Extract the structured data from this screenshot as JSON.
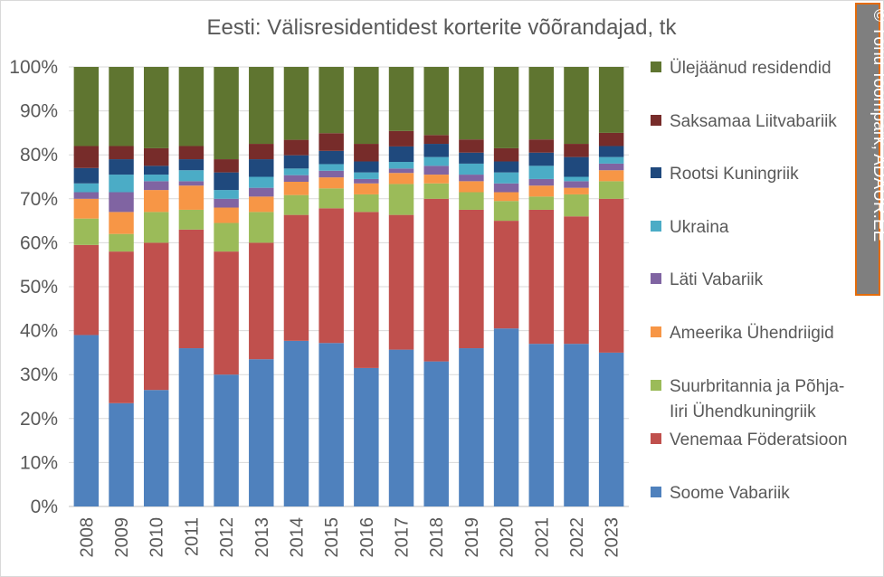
{
  "chart_data": {
    "type": "bar",
    "stacked": true,
    "percent_stacked": true,
    "title": "Eesti: Välisresidentidest korterite võõrandajad, tk",
    "xlabel": "",
    "ylabel": "",
    "ylim": [
      0,
      100
    ],
    "yticks": [
      "0%",
      "10%",
      "20%",
      "30%",
      "40%",
      "50%",
      "60%",
      "70%",
      "80%",
      "90%",
      "100%"
    ],
    "grid": true,
    "legend_position": "right",
    "categories": [
      "2008",
      "2009",
      "2010",
      "2011",
      "2012",
      "2013",
      "2014",
      "2015",
      "2016",
      "2017",
      "2018",
      "2019",
      "2020",
      "2021",
      "2022",
      "2023"
    ],
    "series": [
      {
        "name": "Soome Vabariik",
        "color": "#4f81bd",
        "values": [
          39,
          23.5,
          26.5,
          36,
          30,
          33.5,
          37.5,
          37,
          31.5,
          35.5,
          33,
          36,
          40.5,
          37,
          37,
          35
        ]
      },
      {
        "name": "Venemaa Föderatsioon",
        "color": "#c0504d",
        "values": [
          20.5,
          34.5,
          33.5,
          27,
          28,
          26.5,
          28.5,
          30.5,
          35.5,
          30.5,
          37,
          31.5,
          24.5,
          30.5,
          29,
          35
        ]
      },
      {
        "name": "Suurbritannia ja Põhja-Iiri Ühendkuningriik",
        "color": "#9bbb59",
        "values": [
          6,
          4,
          7,
          4.5,
          6.5,
          7,
          4.5,
          4.5,
          4,
          7,
          3.5,
          4,
          4.5,
          3,
          5,
          4
        ]
      },
      {
        "name": "Ameerika Ühendriigid",
        "color": "#f79646",
        "values": [
          4.5,
          5,
          5,
          5.5,
          3.5,
          3.5,
          3,
          2.5,
          2.5,
          2.5,
          2,
          2.5,
          2,
          2.5,
          1.5,
          2.5
        ]
      },
      {
        "name": "Läti Vabariik",
        "color": "#8064a2",
        "values": [
          1.5,
          4.5,
          2,
          1,
          2,
          2,
          1.5,
          1.5,
          1,
          1,
          2,
          1.5,
          2,
          1.5,
          1.5,
          1.5
        ]
      },
      {
        "name": "Ukraina",
        "color": "#4bacc6",
        "values": [
          2,
          4,
          1.5,
          2.5,
          2,
          2.5,
          1.5,
          1.5,
          1.5,
          1.5,
          2,
          2.5,
          2.5,
          3,
          1,
          1.5
        ]
      },
      {
        "name": "Rootsi Kuningriik",
        "color": "#1f497d",
        "values": [
          3.5,
          3.5,
          2,
          2.5,
          4,
          4,
          3,
          3,
          2.5,
          3.5,
          3,
          2.5,
          2.5,
          3,
          4.5,
          2.5
        ]
      },
      {
        "name": "Saksamaa Liitvabariik",
        "color": "#772c2a",
        "values": [
          5,
          3,
          4,
          3,
          3,
          3.5,
          3.5,
          4,
          4,
          3.5,
          2,
          3,
          3,
          3,
          3,
          3
        ]
      },
      {
        "name": "Ülejäänud residendid",
        "color": "#5f7530",
        "values": [
          18,
          18,
          18.5,
          18,
          21,
          17.5,
          16.5,
          15,
          17.5,
          14.5,
          15.5,
          16.5,
          18.5,
          16.5,
          17.5,
          15
        ]
      }
    ],
    "legend_labels": [
      {
        "lines": [
          "Ülejäänud residendid"
        ],
        "series": "Ülejäänud residendid"
      },
      {
        "lines": [
          "Saksamaa Liitvabariik"
        ],
        "series": "Saksamaa Liitvabariik"
      },
      {
        "lines": [
          "Rootsi Kuningriik"
        ],
        "series": "Rootsi Kuningriik"
      },
      {
        "lines": [
          "Ukraina"
        ],
        "series": "Ukraina"
      },
      {
        "lines": [
          "Läti Vabariik"
        ],
        "series": "Läti Vabariik"
      },
      {
        "lines": [
          "Ameerika Ühendriigid"
        ],
        "series": "Ameerika Ühendriigid"
      },
      {
        "lines": [
          "Suurbritannia ja Põhja-",
          "Iiri Ühendkuningriik"
        ],
        "series": "Suurbritannia ja Põhja-Iiri Ühendkuningriik"
      },
      {
        "lines": [
          "Venemaa Föderatsioon"
        ],
        "series": "Venemaa Föderatsioon"
      },
      {
        "lines": [
          "Soome Vabariik"
        ],
        "series": "Soome Vabariik"
      }
    ]
  },
  "credit": {
    "text": "© Tõnu Toompark, ADAUR.EE",
    "bg_color": "#7f7f7f",
    "border_color": "#e46c0a"
  },
  "style": {
    "grid_color": "#d9d9d9",
    "axis_color": "#bfbfbf",
    "text_color": "#595959"
  }
}
